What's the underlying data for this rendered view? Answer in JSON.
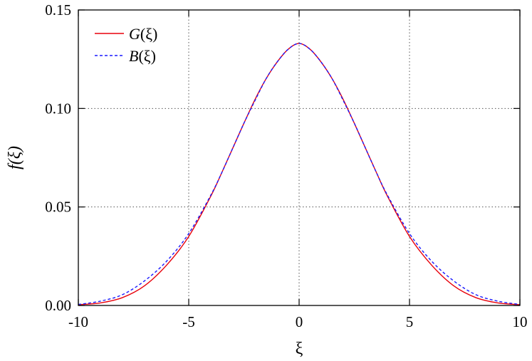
{
  "chart_data": {
    "type": "line",
    "xlabel": "ξ",
    "ylabel": "f(ξ)",
    "xlim": [
      -10,
      10
    ],
    "ylim": [
      0,
      0.15
    ],
    "xticks": [
      -10,
      -5,
      0,
      5,
      10
    ],
    "xtick_labels": [
      "-10",
      "-5",
      "0",
      "5",
      "10"
    ],
    "yticks": [
      0,
      0.05,
      0.1,
      0.15
    ],
    "ytick_labels": [
      "0.00",
      "0.05",
      "0.10",
      "0.15"
    ],
    "grid": true,
    "grid_style": "dotted",
    "legend_position": "top-left",
    "series": [
      {
        "name": "G(ξ)",
        "name_italic": "G",
        "name_rest": "(ξ)",
        "color": "#e8000b",
        "dash": "solid",
        "x": [
          -10,
          -9,
          -8,
          -7,
          -6,
          -5,
          -4,
          -3.5,
          -3,
          -2.5,
          -2,
          -1.5,
          -1,
          -0.5,
          0,
          0.5,
          1,
          1.5,
          2,
          2.5,
          3,
          3.5,
          4,
          5,
          6,
          7,
          8,
          9,
          10
        ],
        "y": [
          0.0004,
          0.0013,
          0.004,
          0.01,
          0.0205,
          0.035,
          0.0555,
          0.0675,
          0.08,
          0.0925,
          0.1045,
          0.115,
          0.1235,
          0.13,
          0.133,
          0.13,
          0.1235,
          0.115,
          0.1045,
          0.0925,
          0.08,
          0.0675,
          0.0555,
          0.035,
          0.0205,
          0.01,
          0.004,
          0.0013,
          0.0004
        ]
      },
      {
        "name": "B(ξ)",
        "name_italic": "B",
        "name_rest": "(ξ)",
        "color": "#1a1aff",
        "dash": "dashed",
        "x": [
          -10,
          -9,
          -8,
          -7,
          -6,
          -5,
          -4,
          -3.5,
          -3,
          -2.5,
          -2,
          -1.5,
          -1,
          -0.5,
          0,
          0.5,
          1,
          1.5,
          2,
          2.5,
          3,
          3.5,
          4,
          5,
          6,
          7,
          8,
          9,
          10
        ],
        "y": [
          0.0005,
          0.0022,
          0.0055,
          0.0125,
          0.0225,
          0.0365,
          0.056,
          0.0675,
          0.08,
          0.0925,
          0.104,
          0.115,
          0.1235,
          0.13,
          0.133,
          0.13,
          0.1235,
          0.115,
          0.104,
          0.0925,
          0.08,
          0.0675,
          0.056,
          0.0365,
          0.0225,
          0.0125,
          0.0055,
          0.0022,
          0.0005
        ]
      }
    ]
  }
}
